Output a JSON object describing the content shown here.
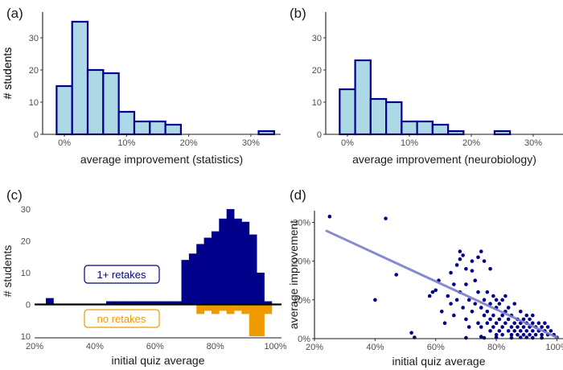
{
  "chart_data": [
    {
      "panel": "(a)",
      "type": "bar",
      "subtype": "histogram",
      "xlabel": "average improvement (statistics)",
      "ylabel": "# students",
      "bin_width": 2.5,
      "bin_starts": [
        -1.25,
        1.25,
        3.75,
        6.25,
        8.75,
        11.25,
        13.75,
        16.25,
        18.75,
        21.25,
        23.75,
        26.25,
        28.75,
        31.25,
        33.75
      ],
      "values": [
        15,
        35,
        20,
        19,
        7,
        4,
        4,
        3,
        0,
        0,
        0,
        0,
        0,
        1,
        0
      ],
      "xlim": [
        -3.5,
        34.8
      ],
      "ylim": [
        0,
        38
      ],
      "xticks": [
        0,
        10,
        20,
        30
      ],
      "xtick_labels": [
        "0%",
        "10%",
        "20%",
        "30%"
      ],
      "yticks": [
        0,
        10,
        20,
        30
      ],
      "ytick_labels": [
        "0",
        "10",
        "20",
        "30"
      ],
      "fill": "#add8e6",
      "stroke": "#00008b"
    },
    {
      "panel": "(b)",
      "type": "bar",
      "subtype": "histogram",
      "xlabel": "average improvement (neurobiology)",
      "ylabel": "# students",
      "bin_width": 2.5,
      "bin_starts": [
        -1.25,
        1.25,
        3.75,
        6.25,
        8.75,
        11.25,
        13.75,
        16.25,
        18.75,
        21.25,
        23.75,
        26.25,
        28.75,
        31.25
      ],
      "values": [
        14,
        23,
        11,
        10,
        4,
        4,
        3,
        1,
        0,
        0,
        1,
        0,
        0,
        0
      ],
      "xlim": [
        -3.5,
        34.8
      ],
      "ylim": [
        0,
        38
      ],
      "xticks": [
        0,
        10,
        20,
        30
      ],
      "xtick_labels": [
        "0%",
        "10%",
        "20%",
        "30%"
      ],
      "yticks": [
        0,
        10,
        20,
        30
      ],
      "ytick_labels": [
        "0",
        "10",
        "20",
        "30"
      ],
      "fill": "#add8e6",
      "stroke": "#00008b"
    },
    {
      "panel": "(c)",
      "type": "bar",
      "subtype": "mirrored histogram",
      "xlabel": "initial quiz average",
      "ylabel": "# students",
      "bin_width": 2.5,
      "series": [
        {
          "name": "1+ retakes",
          "direction": "up",
          "color": "#00008b",
          "bin_starts": [
            23.75,
            43.75,
            46.25,
            48.75,
            51.25,
            53.75,
            56.25,
            58.75,
            61.25,
            63.75,
            66.25,
            68.75,
            71.25,
            73.75,
            76.25,
            78.75,
            81.25,
            83.75,
            86.25,
            88.75,
            91.25,
            93.75,
            96.25
          ],
          "values": [
            2,
            1,
            1,
            1,
            1,
            1,
            1,
            1,
            1,
            1,
            1,
            14,
            16,
            19,
            21,
            23,
            27,
            30,
            27,
            26,
            22,
            10,
            1
          ]
        },
        {
          "name": "no retakes",
          "direction": "down",
          "color": "#ee9a00",
          "bin_starts": [
            73.75,
            76.25,
            78.75,
            81.25,
            83.75,
            86.25,
            88.75,
            91.25,
            93.75,
            96.25
          ],
          "values": [
            3,
            2,
            3,
            2,
            3,
            2,
            3,
            10,
            10,
            3
          ]
        }
      ],
      "xlim": [
        20,
        102
      ],
      "ylim": [
        -10.5,
        31.5
      ],
      "xticks": [
        20,
        40,
        60,
        80,
        100
      ],
      "xtick_labels": [
        "20%",
        "40%",
        "60%",
        "80%",
        "100%"
      ],
      "yticks": [
        30,
        20,
        10,
        0,
        -10
      ],
      "ytick_labels": [
        "30",
        "20",
        "10",
        "0",
        "10"
      ]
    },
    {
      "panel": "(d)",
      "type": "scatter",
      "xlabel": "initial quiz average",
      "ylabel": "average improvement",
      "xlim": [
        20,
        102
      ],
      "ylim": [
        0,
        33
      ],
      "xticks": [
        20,
        40,
        60,
        80,
        100
      ],
      "xtick_labels": [
        "20%",
        "40%",
        "60%",
        "80%",
        "100%"
      ],
      "yticks": [
        0,
        10,
        20,
        30
      ],
      "ytick_labels": [
        "0%",
        "10%",
        "20%",
        "30%"
      ],
      "point_color": "#00008b",
      "trend_color": "#7b7ecb",
      "trend_line": [
        [
          24,
          27.8
        ],
        [
          100,
          0.3
        ]
      ],
      "x": [
        25,
        43.5,
        40,
        47,
        52,
        53,
        58,
        59,
        60,
        61,
        62,
        63,
        64,
        65,
        65,
        66,
        66,
        67,
        67,
        68,
        68,
        68,
        69,
        69,
        70,
        70,
        70,
        71,
        71,
        72,
        72,
        72,
        73,
        73,
        74,
        74,
        74,
        75,
        75,
        75,
        75,
        76,
        76,
        76,
        77,
        77,
        77,
        78,
        78,
        78,
        78,
        79,
        79,
        79,
        80,
        80,
        80,
        80,
        81,
        81,
        81,
        82,
        82,
        82,
        82,
        83,
        83,
        83,
        84,
        84,
        84,
        85,
        85,
        85,
        86,
        86,
        86,
        87,
        87,
        87,
        88,
        88,
        88,
        89,
        89,
        89,
        90,
        90,
        90,
        91,
        91,
        91,
        92,
        92,
        92,
        93,
        93,
        94,
        94,
        95,
        95,
        96,
        96,
        97,
        97,
        98,
        99,
        100,
        76,
        80,
        85,
        90,
        95,
        70,
        88,
        92
      ],
      "y": [
        31.5,
        31,
        10,
        16.5,
        1.5,
        0.3,
        11,
        12,
        12.5,
        15,
        7,
        4,
        11,
        9,
        17,
        6,
        14,
        10,
        19,
        12,
        20.5,
        22.5,
        8,
        21.5,
        5,
        14,
        18,
        10,
        3,
        7,
        17.5,
        20,
        9,
        15,
        12,
        4,
        21,
        0.5,
        3,
        8,
        22.5,
        6,
        10,
        20,
        7,
        4,
        12,
        2,
        5,
        9,
        18,
        11,
        6,
        3,
        1,
        4,
        8,
        10,
        2,
        5,
        9,
        3,
        6,
        10,
        1,
        4,
        7,
        11,
        2,
        5,
        8,
        1,
        3,
        6,
        2,
        4,
        9,
        1,
        3,
        5,
        2,
        4,
        7,
        1,
        3,
        5,
        2,
        4,
        6,
        1,
        3,
        5,
        2,
        4,
        6,
        1,
        3,
        2,
        4,
        1,
        3,
        2,
        4,
        1,
        3,
        2,
        1,
        0.3,
        0.2,
        0.3,
        0.2,
        0.3,
        0.2,
        0.2,
        0.3,
        0.2
      ]
    }
  ]
}
